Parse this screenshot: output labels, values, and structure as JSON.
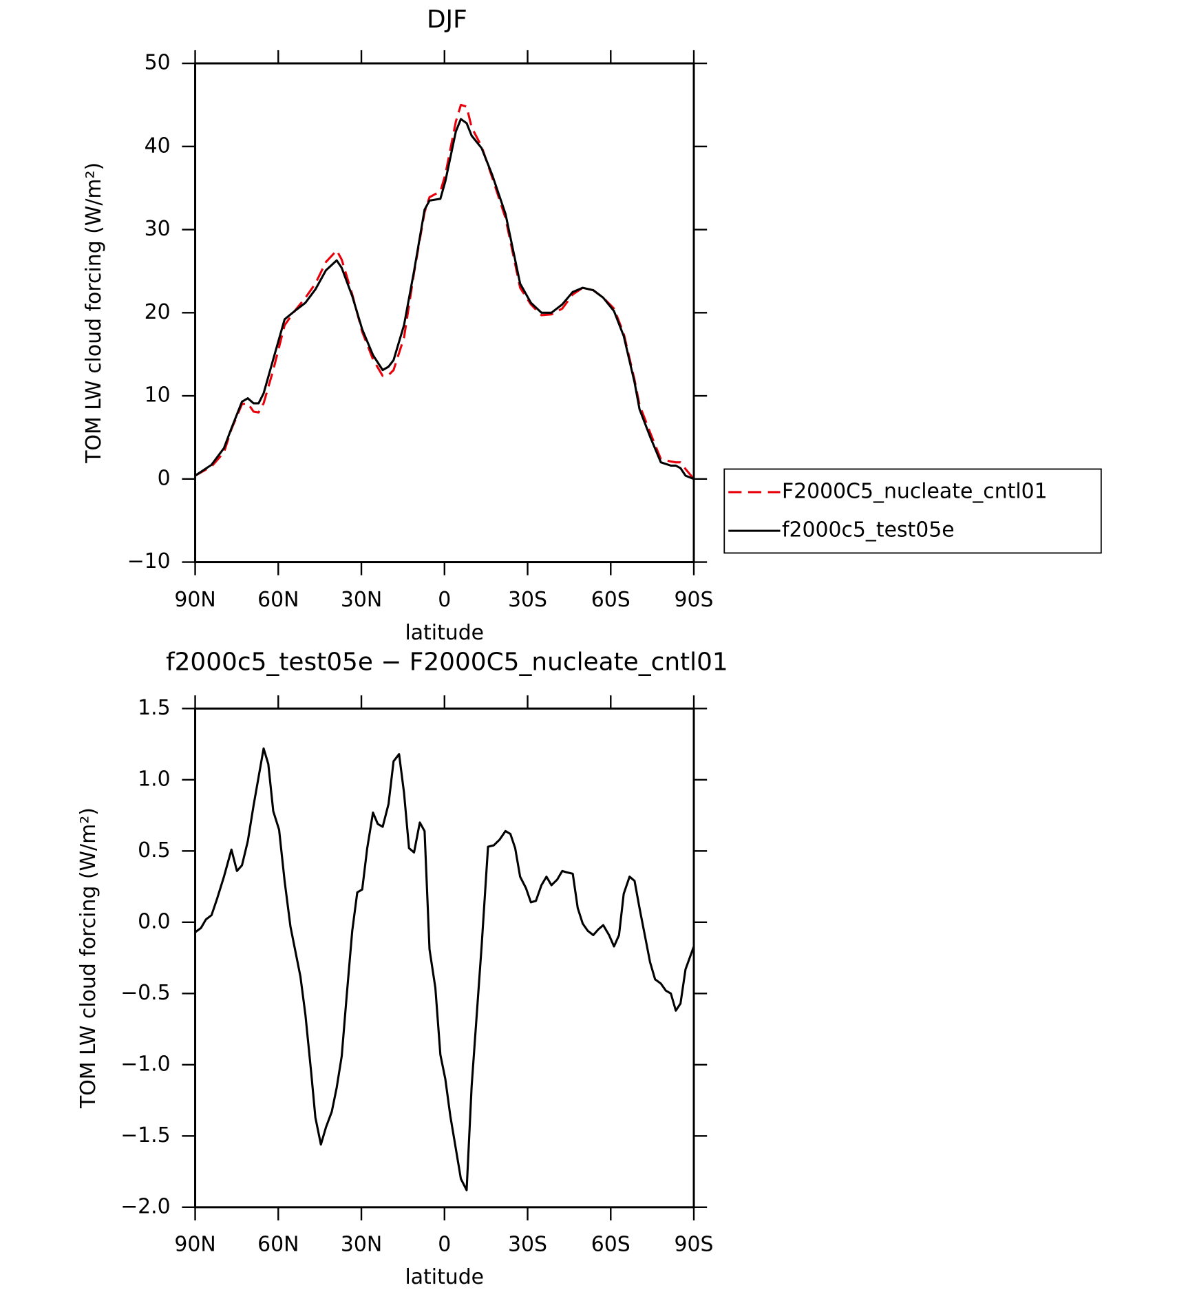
{
  "chart_data": [
    {
      "type": "line",
      "title": "DJF",
      "xlabel": "latitude",
      "ylabel": "TOM LW cloud forcing (W/m²)",
      "x": [
        90,
        84.1,
        79.6,
        76.9,
        73.1,
        71.0,
        68.9,
        67.1,
        65.3,
        61.8,
        57.7,
        54.1,
        50.2,
        46.6,
        42.8,
        38.9,
        37.1,
        33.3,
        29.7,
        25.8,
        22.3,
        20.2,
        18.4,
        14.6,
        11.0,
        7.2,
        5.4,
        1.5,
        -0.3,
        -4.1,
        -5.9,
        -8.0,
        -9.8,
        -13.4,
        -17.2,
        -22.0,
        -27.3,
        -31.2,
        -35.0,
        -38.6,
        -42.5,
        -46.3,
        -49.9,
        -53.7,
        -57.3,
        -61.2,
        -64.7,
        -68.6,
        -70.4,
        -74.2,
        -78.1,
        -81.7,
        -83.5,
        -85.2,
        -87.0,
        -90
      ],
      "series": [
        {
          "name": "F2000C5_nucleate_cntl01",
          "color": "#e8000b",
          "dash": "dashed",
          "values": [
            0.4,
            1.5,
            3.2,
            6.0,
            9.0,
            9.1,
            8.1,
            8.0,
            9.1,
            13.1,
            18.5,
            20.2,
            21.8,
            23.5,
            26.1,
            27.5,
            26.4,
            22.2,
            17.7,
            14.4,
            12.4,
            12.5,
            13.1,
            17.0,
            24.8,
            32.1,
            33.9,
            34.6,
            36.6,
            43.0,
            45.0,
            44.8,
            42.3,
            40.0,
            36.3,
            31.4,
            23.0,
            21.0,
            19.7,
            19.8,
            20.5,
            22.2,
            23.0,
            22.7,
            21.8,
            20.5,
            17.5,
            11.9,
            8.9,
            5.6,
            2.4,
            2.1,
            2.0,
            2.0,
            1.2,
            0.0
          ]
        },
        {
          "name": "f2000c5_test05e",
          "color": "#000000",
          "dash": "solid",
          "values": [
            0.4,
            1.7,
            3.7,
            6.1,
            9.3,
            9.7,
            9.1,
            9.1,
            10.3,
            14.4,
            19.2,
            20.2,
            21.2,
            22.8,
            25.1,
            26.3,
            25.4,
            22.0,
            18.0,
            14.9,
            13.1,
            13.5,
            14.3,
            18.5,
            25.0,
            32.4,
            33.5,
            33.7,
            35.8,
            41.8,
            43.3,
            42.8,
            41.3,
            39.8,
            36.6,
            31.9,
            23.5,
            21.2,
            20.0,
            20.0,
            21.0,
            22.5,
            23.0,
            22.7,
            21.8,
            20.2,
            17.2,
            11.6,
            8.4,
            5.1,
            2.0,
            1.6,
            1.6,
            1.3,
            0.4,
            0.0
          ]
        }
      ],
      "xlim": [
        90,
        -90
      ],
      "xticks": [
        {
          "value": 90,
          "label": "90N"
        },
        {
          "value": 60,
          "label": "60N"
        },
        {
          "value": 30,
          "label": "30N"
        },
        0,
        {
          "value": -30,
          "label": "30S"
        },
        {
          "value": -60,
          "label": "60S"
        },
        {
          "value": -90,
          "label": "90S"
        }
      ],
      "ylim": [
        -10,
        50
      ],
      "yticks": [
        {
          "value": -10,
          "label": "−10"
        },
        0,
        10,
        20,
        30,
        40,
        50
      ],
      "legend": "right"
    },
    {
      "type": "line",
      "title": "f2000c5_test05e − F2000C5_nucleate_cntl01",
      "xlabel": "latitude",
      "ylabel": "TOM LW cloud forcing (W/m²)",
      "x": [
        90,
        87.9,
        86.1,
        84.1,
        82.0,
        79.6,
        76.9,
        74.9,
        73.1,
        71.0,
        68.9,
        65.3,
        63.6,
        61.8,
        59.7,
        57.7,
        55.6,
        52.0,
        50.2,
        48.1,
        46.6,
        44.6,
        42.8,
        40.7,
        38.9,
        37.1,
        35.4,
        33.3,
        31.5,
        29.7,
        27.9,
        25.8,
        24.1,
        22.3,
        20.2,
        18.4,
        16.4,
        14.6,
        12.8,
        11.0,
        8.9,
        7.2,
        5.4,
        3.3,
        1.5,
        -0.3,
        -2.1,
        -4.1,
        -5.9,
        -8.0,
        -9.8,
        -13.4,
        -15.7,
        -17.8,
        -19.9,
        -22.0,
        -23.8,
        -25.5,
        -27.3,
        -29.4,
        -31.2,
        -33.0,
        -35.0,
        -36.8,
        -38.6,
        -40.7,
        -42.5,
        -44.2,
        -46.3,
        -48.1,
        -49.9,
        -51.7,
        -53.7,
        -55.5,
        -57.3,
        -59.4,
        -61.2,
        -63.0,
        -64.7,
        -66.8,
        -68.6,
        -70.4,
        -72.5,
        -74.2,
        -76.0,
        -78.1,
        -79.9,
        -81.7,
        -83.5,
        -85.2,
        -87.0,
        -90.0
      ],
      "values": [
        -0.07,
        -0.04,
        0.02,
        0.05,
        0.17,
        0.32,
        0.51,
        0.36,
        0.4,
        0.57,
        0.82,
        1.22,
        1.11,
        0.78,
        0.65,
        0.29,
        -0.03,
        -0.38,
        -0.65,
        -1.06,
        -1.37,
        -1.56,
        -1.44,
        -1.33,
        -1.16,
        -0.94,
        -0.54,
        -0.06,
        0.21,
        0.23,
        0.52,
        0.77,
        0.69,
        0.67,
        0.83,
        1.13,
        1.18,
        0.91,
        0.52,
        0.49,
        0.7,
        0.64,
        -0.19,
        -0.46,
        -0.93,
        -1.1,
        -1.36,
        -1.59,
        -1.8,
        -1.88,
        -1.15,
        -0.17,
        0.53,
        0.54,
        0.58,
        0.64,
        0.62,
        0.52,
        0.32,
        0.24,
        0.14,
        0.15,
        0.26,
        0.32,
        0.26,
        0.3,
        0.36,
        0.35,
        0.34,
        0.1,
        -0.01,
        -0.06,
        -0.09,
        -0.05,
        -0.02,
        -0.09,
        -0.17,
        -0.09,
        0.2,
        0.32,
        0.29,
        0.1,
        -0.11,
        -0.28,
        -0.4,
        -0.43,
        -0.48,
        -0.5,
        -0.62,
        -0.57,
        -0.33,
        -0.17
      ],
      "color": "#000000",
      "xlim": [
        90,
        -90
      ],
      "xticks": [
        {
          "value": 90,
          "label": "90N"
        },
        {
          "value": 60,
          "label": "60N"
        },
        {
          "value": 30,
          "label": "30N"
        },
        0,
        {
          "value": -30,
          "label": "30S"
        },
        {
          "value": -60,
          "label": "60S"
        },
        {
          "value": -90,
          "label": "90S"
        }
      ],
      "ylim": [
        -2.0,
        1.5
      ],
      "yticks": [
        {
          "value": -2.0,
          "label": "−2.0"
        },
        {
          "value": -1.5,
          "label": "−1.5"
        },
        {
          "value": -1.0,
          "label": "−1.0"
        },
        {
          "value": -0.5,
          "label": "−0.5"
        },
        {
          "value": 0.0,
          "label": "0.0"
        },
        0.5,
        {
          "value": 1.0,
          "label": "1.0"
        },
        1.5
      ]
    }
  ]
}
